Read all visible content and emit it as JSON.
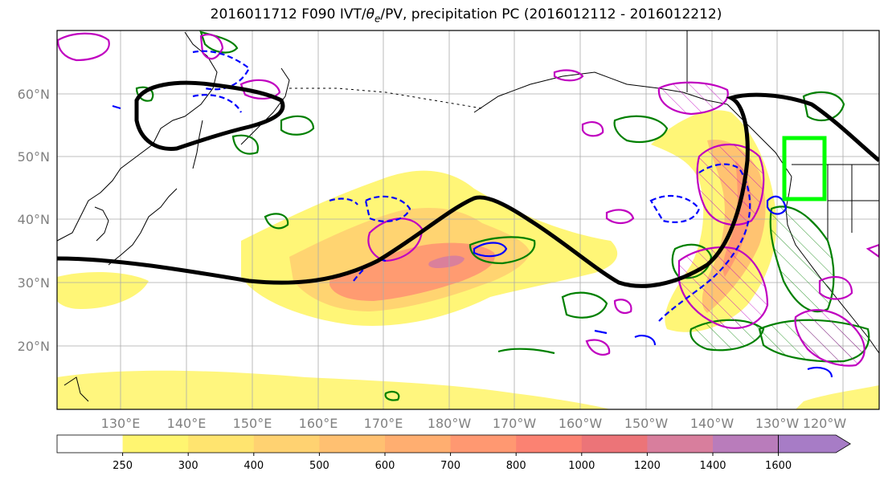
{
  "title": {
    "prefix": "2016011712 F090 IVT/",
    "theta": "θ",
    "theta_sub": "e",
    "suffix": "/PV, precipitation PC (2016012112 - 2016012212)"
  },
  "map": {
    "lat_labels": [
      "60°N",
      "50°N",
      "40°N",
      "30°N",
      "20°N"
    ],
    "lon_labels": [
      "130°E",
      "140°E",
      "150°E",
      "160°E",
      "170°E",
      "180°W",
      "170°W",
      "160°W",
      "150°W",
      "140°W",
      "130°W",
      "120°W"
    ],
    "colors": {
      "jet_contour": "#000000",
      "pv_contour": "#0000ff",
      "theta_contour": "#c000c0",
      "precip_contour": "#008000",
      "target_box": "#00ff00",
      "coast": "#000000",
      "grid": "#aaaaaa"
    }
  },
  "colorbar": {
    "labels": [
      "250",
      "300",
      "400",
      "500",
      "600",
      "700",
      "800",
      "1000",
      "1200",
      "1400",
      "1600"
    ],
    "colors": [
      "#ffffff",
      "#fff570",
      "#ffe46f",
      "#ffd271",
      "#ffc071",
      "#ffae70",
      "#ff9871",
      "#fb8272",
      "#ec7478",
      "#d87e9d",
      "#b97cbb",
      "#a77cc6"
    ]
  }
}
